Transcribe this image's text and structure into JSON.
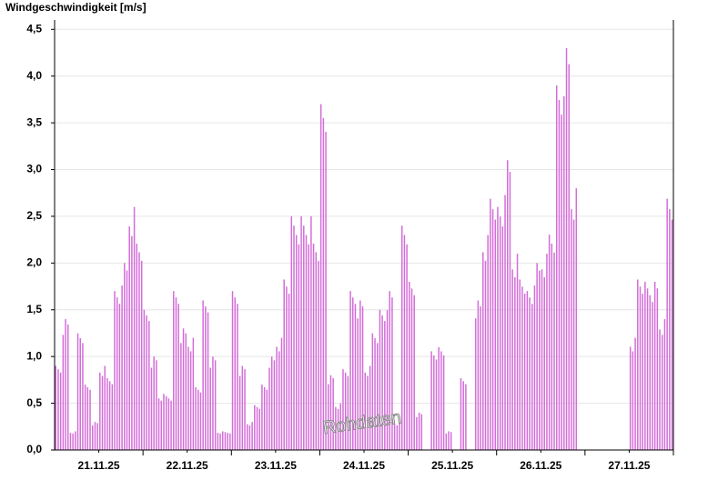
{
  "chart_data": {
    "type": "bar",
    "title": "Windgeschwindigkeit [m/s]",
    "watermark": "Rohdaten",
    "color": "#d36ed8",
    "days": [
      "21.11.25",
      "22.11.25",
      "23.11.25",
      "24.11.25",
      "25.11.25",
      "26.11.25",
      "27.11.25"
    ],
    "values": [
      0.9,
      1.4,
      0.2,
      1.3,
      0.7,
      0.3,
      0.9,
      0.8,
      1.7,
      2.0,
      2.6,
      2.3,
      1.5,
      1.0,
      0.6,
      0.6,
      1.7,
      1.3,
      1.2,
      0.7,
      1.6,
      1.0,
      0.2,
      0.2,
      1.7,
      0.9,
      0.3,
      0.5,
      0.7,
      1.0,
      1.2,
      1.9,
      2.5,
      2.5,
      2.5,
      2.3,
      3.7,
      0.8,
      0.5,
      0.9,
      1.7,
      1.6,
      0.9,
      1.3,
      1.5,
      1.7,
      0.3,
      2.5,
      1.8,
      0.4,
      null,
      1.1,
      1.1,
      0.2,
      null,
      0.8,
      null,
      1.6,
      2.3,
      2.8,
      2.6,
      3.1,
      2.1,
      1.9,
      1.7,
      2.0,
      2.1,
      2.4,
      3.9,
      4.3,
      2.8,
      null,
      null,
      null,
      null,
      null,
      null,
      null,
      1.2,
      1.9,
      1.8,
      1.8,
      1.4,
      2.8
    ],
    "ylim": [
      0,
      4.6
    ],
    "yticks": [
      {
        "value": 0,
        "label": "0,0"
      },
      {
        "value": 0.5,
        "label": "0,5"
      },
      {
        "value": 1,
        "label": "1,0"
      },
      {
        "value": 1.5,
        "label": "1,5"
      },
      {
        "value": 2,
        "label": "2,0"
      },
      {
        "value": 2.5,
        "label": "2,5"
      },
      {
        "value": 3,
        "label": "3,0"
      },
      {
        "value": 3.5,
        "label": "3,5"
      },
      {
        "value": 4,
        "label": "4,0"
      },
      {
        "value": 4.5,
        "label": "4,5"
      }
    ],
    "grid": true
  }
}
